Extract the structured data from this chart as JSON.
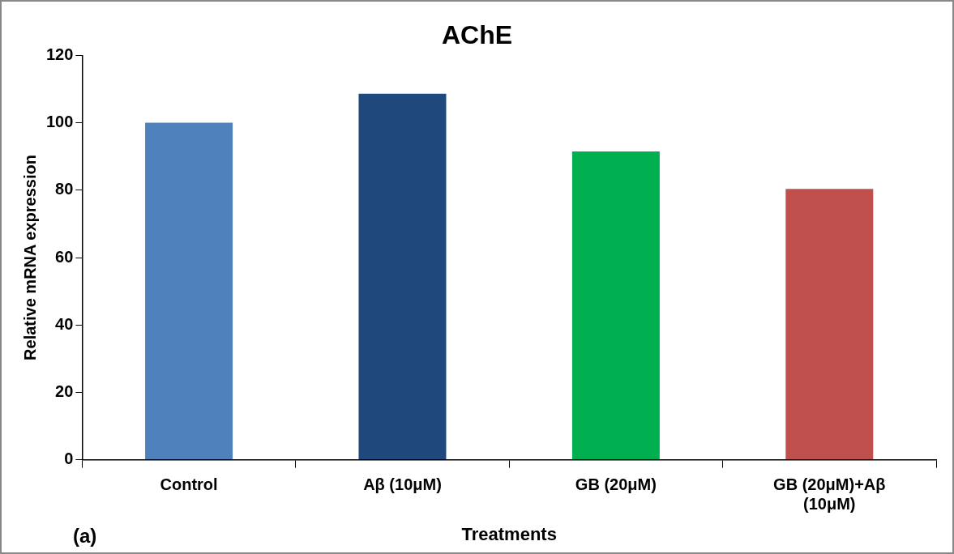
{
  "chart_data": {
    "type": "bar",
    "title": "AChE",
    "xlabel": "Treatments",
    "ylabel": "Relative mRNA expression",
    "categories": [
      "Control",
      "Aβ (10μM)",
      "GB (20μM)",
      "GB (20μM)+Aβ (10μM)"
    ],
    "values": [
      100,
      108.6,
      91.5,
      80.4
    ],
    "colors": [
      "#4f81bd",
      "#1f497d",
      "#00b050",
      "#c0504d"
    ],
    "ylim": [
      0,
      120
    ],
    "yticks": [
      0,
      20,
      40,
      60,
      80,
      100,
      120
    ],
    "grid": false,
    "legend": false,
    "annotations": [
      "(a)"
    ]
  }
}
